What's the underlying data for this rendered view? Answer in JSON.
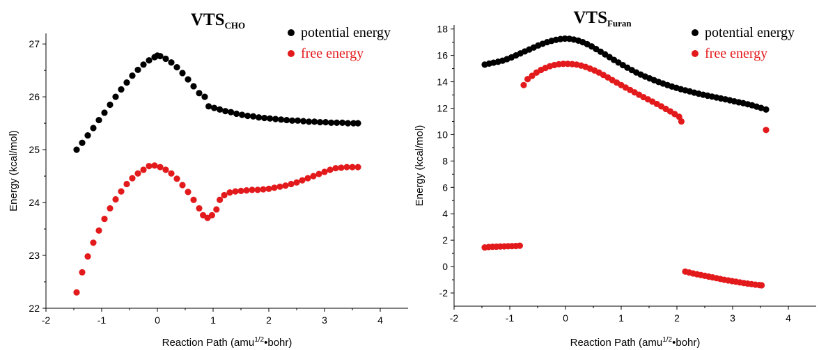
{
  "chart_data": [
    {
      "type": "scatter",
      "title": "VTS",
      "title_subscript": "CHO",
      "xlabel": "Reaction Path (amu",
      "xlabel_sup": "1/2",
      "xlabel_tail": "•bohr)",
      "ylabel": "Energy (kcal/mol)",
      "xlim": [
        -2,
        4.5
      ],
      "ylim": [
        22,
        27.2
      ],
      "xticks": [
        "-2",
        "-1",
        "0",
        "1",
        "2",
        "3",
        "4"
      ],
      "xtick_values": [
        -2,
        -1,
        0,
        1,
        2,
        3,
        4
      ],
      "yticks": [
        "22",
        "23",
        "24",
        "25",
        "26",
        "27"
      ],
      "ytick_values": [
        22,
        23,
        24,
        25,
        26,
        27
      ],
      "legend_position": "top-right",
      "series": [
        {
          "name": "potential energy",
          "color": "#000000",
          "points": [
            [
              -1.45,
              25.0
            ],
            [
              -1.35,
              25.13
            ],
            [
              -1.25,
              25.27
            ],
            [
              -1.15,
              25.41
            ],
            [
              -1.05,
              25.56
            ],
            [
              -0.95,
              25.7
            ],
            [
              -0.85,
              25.85
            ],
            [
              -0.75,
              26.0
            ],
            [
              -0.65,
              26.14
            ],
            [
              -0.55,
              26.27
            ],
            [
              -0.45,
              26.4
            ],
            [
              -0.35,
              26.51
            ],
            [
              -0.25,
              26.61
            ],
            [
              -0.15,
              26.69
            ],
            [
              -0.05,
              26.75
            ],
            [
              0.0,
              26.78
            ],
            [
              0.05,
              26.77
            ],
            [
              0.15,
              26.72
            ],
            [
              0.25,
              26.65
            ],
            [
              0.35,
              26.56
            ],
            [
              0.45,
              26.45
            ],
            [
              0.55,
              26.33
            ],
            [
              0.65,
              26.2
            ],
            [
              0.75,
              26.07
            ],
            [
              0.85,
              26.0
            ],
            [
              0.92,
              25.82
            ],
            [
              1.02,
              25.79
            ],
            [
              1.12,
              25.76
            ],
            [
              1.22,
              25.73
            ],
            [
              1.32,
              25.71
            ],
            [
              1.42,
              25.68
            ],
            [
              1.52,
              25.66
            ],
            [
              1.62,
              25.64
            ],
            [
              1.72,
              25.63
            ],
            [
              1.82,
              25.61
            ],
            [
              1.92,
              25.6
            ],
            [
              2.02,
              25.59
            ],
            [
              2.12,
              25.58
            ],
            [
              2.22,
              25.57
            ],
            [
              2.32,
              25.56
            ],
            [
              2.42,
              25.55
            ],
            [
              2.52,
              25.55
            ],
            [
              2.62,
              25.54
            ],
            [
              2.72,
              25.53
            ],
            [
              2.82,
              25.53
            ],
            [
              2.92,
              25.52
            ],
            [
              3.02,
              25.52
            ],
            [
              3.12,
              25.51
            ],
            [
              3.22,
              25.51
            ],
            [
              3.32,
              25.51
            ],
            [
              3.42,
              25.5
            ],
            [
              3.52,
              25.5
            ],
            [
              3.6,
              25.5
            ]
          ]
        },
        {
          "name": "free energy",
          "color": "#e31a1c",
          "points": [
            [
              -1.45,
              22.3
            ],
            [
              -1.35,
              22.68
            ],
            [
              -1.25,
              22.98
            ],
            [
              -1.15,
              23.24
            ],
            [
              -1.05,
              23.47
            ],
            [
              -0.95,
              23.69
            ],
            [
              -0.85,
              23.89
            ],
            [
              -0.75,
              24.06
            ],
            [
              -0.65,
              24.21
            ],
            [
              -0.55,
              24.35
            ],
            [
              -0.45,
              24.46
            ],
            [
              -0.35,
              24.55
            ],
            [
              -0.25,
              24.62
            ],
            [
              -0.15,
              24.69
            ],
            [
              -0.05,
              24.7
            ],
            [
              0.05,
              24.67
            ],
            [
              0.15,
              24.62
            ],
            [
              0.25,
              24.55
            ],
            [
              0.35,
              24.45
            ],
            [
              0.45,
              24.33
            ],
            [
              0.55,
              24.2
            ],
            [
              0.65,
              24.05
            ],
            [
              0.75,
              23.89
            ],
            [
              0.82,
              23.76
            ],
            [
              0.9,
              23.71
            ],
            [
              0.98,
              23.76
            ],
            [
              1.06,
              23.87
            ],
            [
              1.12,
              24.05
            ],
            [
              1.2,
              24.14
            ],
            [
              1.3,
              24.19
            ],
            [
              1.4,
              24.21
            ],
            [
              1.5,
              24.22
            ],
            [
              1.6,
              24.23
            ],
            [
              1.7,
              24.24
            ],
            [
              1.8,
              24.24
            ],
            [
              1.9,
              24.25
            ],
            [
              2.0,
              24.26
            ],
            [
              2.1,
              24.28
            ],
            [
              2.2,
              24.3
            ],
            [
              2.3,
              24.32
            ],
            [
              2.4,
              24.35
            ],
            [
              2.5,
              24.38
            ],
            [
              2.6,
              24.42
            ],
            [
              2.7,
              24.46
            ],
            [
              2.8,
              24.5
            ],
            [
              2.9,
              24.54
            ],
            [
              3.0,
              24.58
            ],
            [
              3.1,
              24.62
            ],
            [
              3.2,
              24.65
            ],
            [
              3.3,
              24.66
            ],
            [
              3.4,
              24.67
            ],
            [
              3.5,
              24.67
            ],
            [
              3.6,
              24.67
            ]
          ]
        }
      ]
    },
    {
      "type": "scatter",
      "title": "VTS",
      "title_subscript": "Furan",
      "xlabel": "Reaction Path (amu",
      "xlabel_sup": "1/2",
      "xlabel_tail": "•bohr)",
      "ylabel": "Energy (kcal/mol)",
      "xlim": [
        -2,
        4.5
      ],
      "ylim": [
        -3,
        18.3
      ],
      "xticks": [
        "-2",
        "-1",
        "0",
        "1",
        "2",
        "3",
        "4"
      ],
      "xtick_values": [
        -2,
        -1,
        0,
        1,
        2,
        3,
        4
      ],
      "yticks": [
        "-2",
        "0",
        "2",
        "4",
        "6",
        "8",
        "10",
        "12",
        "14",
        "16",
        "18"
      ],
      "ytick_values": [
        -2,
        0,
        2,
        4,
        6,
        8,
        10,
        12,
        14,
        16,
        18
      ],
      "legend_position": "top-right",
      "series": [
        {
          "name": "potential energy",
          "color": "#000000",
          "points": [
            [
              -1.45,
              15.3
            ],
            [
              -1.37,
              15.38
            ],
            [
              -1.29,
              15.45
            ],
            [
              -1.21,
              15.52
            ],
            [
              -1.13,
              15.6
            ],
            [
              -1.05,
              15.72
            ],
            [
              -0.97,
              15.85
            ],
            [
              -0.89,
              16.0
            ],
            [
              -0.81,
              16.15
            ],
            [
              -0.73,
              16.3
            ],
            [
              -0.65,
              16.45
            ],
            [
              -0.57,
              16.6
            ],
            [
              -0.49,
              16.75
            ],
            [
              -0.41,
              16.88
            ],
            [
              -0.33,
              17.0
            ],
            [
              -0.25,
              17.1
            ],
            [
              -0.17,
              17.18
            ],
            [
              -0.09,
              17.24
            ],
            [
              -0.01,
              17.27
            ],
            [
              0.07,
              17.26
            ],
            [
              0.15,
              17.2
            ],
            [
              0.23,
              17.12
            ],
            [
              0.31,
              17.0
            ],
            [
              0.39,
              16.85
            ],
            [
              0.47,
              16.68
            ],
            [
              0.55,
              16.48
            ],
            [
              0.63,
              16.28
            ],
            [
              0.71,
              16.08
            ],
            [
              0.79,
              15.87
            ],
            [
              0.87,
              15.66
            ],
            [
              0.95,
              15.46
            ],
            [
              1.03,
              15.26
            ],
            [
              1.11,
              15.07
            ],
            [
              1.19,
              14.89
            ],
            [
              1.27,
              14.71
            ],
            [
              1.35,
              14.55
            ],
            [
              1.43,
              14.4
            ],
            [
              1.51,
              14.26
            ],
            [
              1.59,
              14.12
            ],
            [
              1.67,
              13.99
            ],
            [
              1.75,
              13.87
            ],
            [
              1.83,
              13.75
            ],
            [
              1.91,
              13.64
            ],
            [
              1.99,
              13.54
            ],
            [
              2.07,
              13.44
            ],
            [
              2.15,
              13.35
            ],
            [
              2.23,
              13.27
            ],
            [
              2.31,
              13.18
            ],
            [
              2.39,
              13.1
            ],
            [
              2.47,
              13.02
            ],
            [
              2.55,
              12.95
            ],
            [
              2.63,
              12.88
            ],
            [
              2.71,
              12.81
            ],
            [
              2.79,
              12.74
            ],
            [
              2.87,
              12.67
            ],
            [
              2.95,
              12.6
            ],
            [
              3.03,
              12.52
            ],
            [
              3.11,
              12.45
            ],
            [
              3.19,
              12.38
            ],
            [
              3.27,
              12.3
            ],
            [
              3.35,
              12.22
            ],
            [
              3.43,
              12.12
            ],
            [
              3.51,
              12.02
            ],
            [
              3.6,
              11.9
            ]
          ]
        },
        {
          "name": "free energy",
          "color": "#e31a1c",
          "points": [
            [
              -1.45,
              1.45
            ],
            [
              -1.38,
              1.48
            ],
            [
              -1.31,
              1.5
            ],
            [
              -1.24,
              1.51
            ],
            [
              -1.17,
              1.52
            ],
            [
              -1.1,
              1.53
            ],
            [
              -1.03,
              1.54
            ],
            [
              -0.96,
              1.55
            ],
            [
              -0.89,
              1.56
            ],
            [
              -0.82,
              1.58
            ],
            [
              -0.75,
              13.75
            ],
            [
              -0.68,
              14.2
            ],
            [
              -0.6,
              14.45
            ],
            [
              -0.52,
              14.7
            ],
            [
              -0.44,
              14.9
            ],
            [
              -0.36,
              15.05
            ],
            [
              -0.28,
              15.18
            ],
            [
              -0.2,
              15.27
            ],
            [
              -0.12,
              15.33
            ],
            [
              -0.04,
              15.36
            ],
            [
              0.04,
              15.36
            ],
            [
              0.12,
              15.34
            ],
            [
              0.2,
              15.3
            ],
            [
              0.28,
              15.23
            ],
            [
              0.36,
              15.13
            ],
            [
              0.44,
              15.0
            ],
            [
              0.52,
              14.86
            ],
            [
              0.6,
              14.7
            ],
            [
              0.68,
              14.52
            ],
            [
              0.76,
              14.33
            ],
            [
              0.84,
              14.13
            ],
            [
              0.92,
              13.94
            ],
            [
              1.0,
              13.75
            ],
            [
              1.08,
              13.56
            ],
            [
              1.16,
              13.38
            ],
            [
              1.24,
              13.2
            ],
            [
              1.32,
              13.02
            ],
            [
              1.4,
              12.84
            ],
            [
              1.48,
              12.67
            ],
            [
              1.56,
              12.5
            ],
            [
              1.64,
              12.32
            ],
            [
              1.72,
              12.14
            ],
            [
              1.8,
              11.95
            ],
            [
              1.88,
              11.76
            ],
            [
              1.96,
              11.56
            ],
            [
              2.04,
              11.35
            ],
            [
              2.08,
              11.0
            ],
            [
              2.15,
              -0.38
            ],
            [
              2.22,
              -0.45
            ],
            [
              2.29,
              -0.52
            ],
            [
              2.36,
              -0.58
            ],
            [
              2.43,
              -0.64
            ],
            [
              2.5,
              -0.7
            ],
            [
              2.57,
              -0.76
            ],
            [
              2.64,
              -0.82
            ],
            [
              2.71,
              -0.88
            ],
            [
              2.78,
              -0.94
            ],
            [
              2.85,
              -1.0
            ],
            [
              2.92,
              -1.05
            ],
            [
              2.99,
              -1.1
            ],
            [
              3.06,
              -1.15
            ],
            [
              3.13,
              -1.2
            ],
            [
              3.2,
              -1.25
            ],
            [
              3.27,
              -1.29
            ],
            [
              3.34,
              -1.33
            ],
            [
              3.41,
              -1.37
            ],
            [
              3.48,
              -1.4
            ],
            [
              3.52,
              -1.42
            ],
            [
              3.6,
              10.35
            ]
          ]
        }
      ]
    }
  ]
}
